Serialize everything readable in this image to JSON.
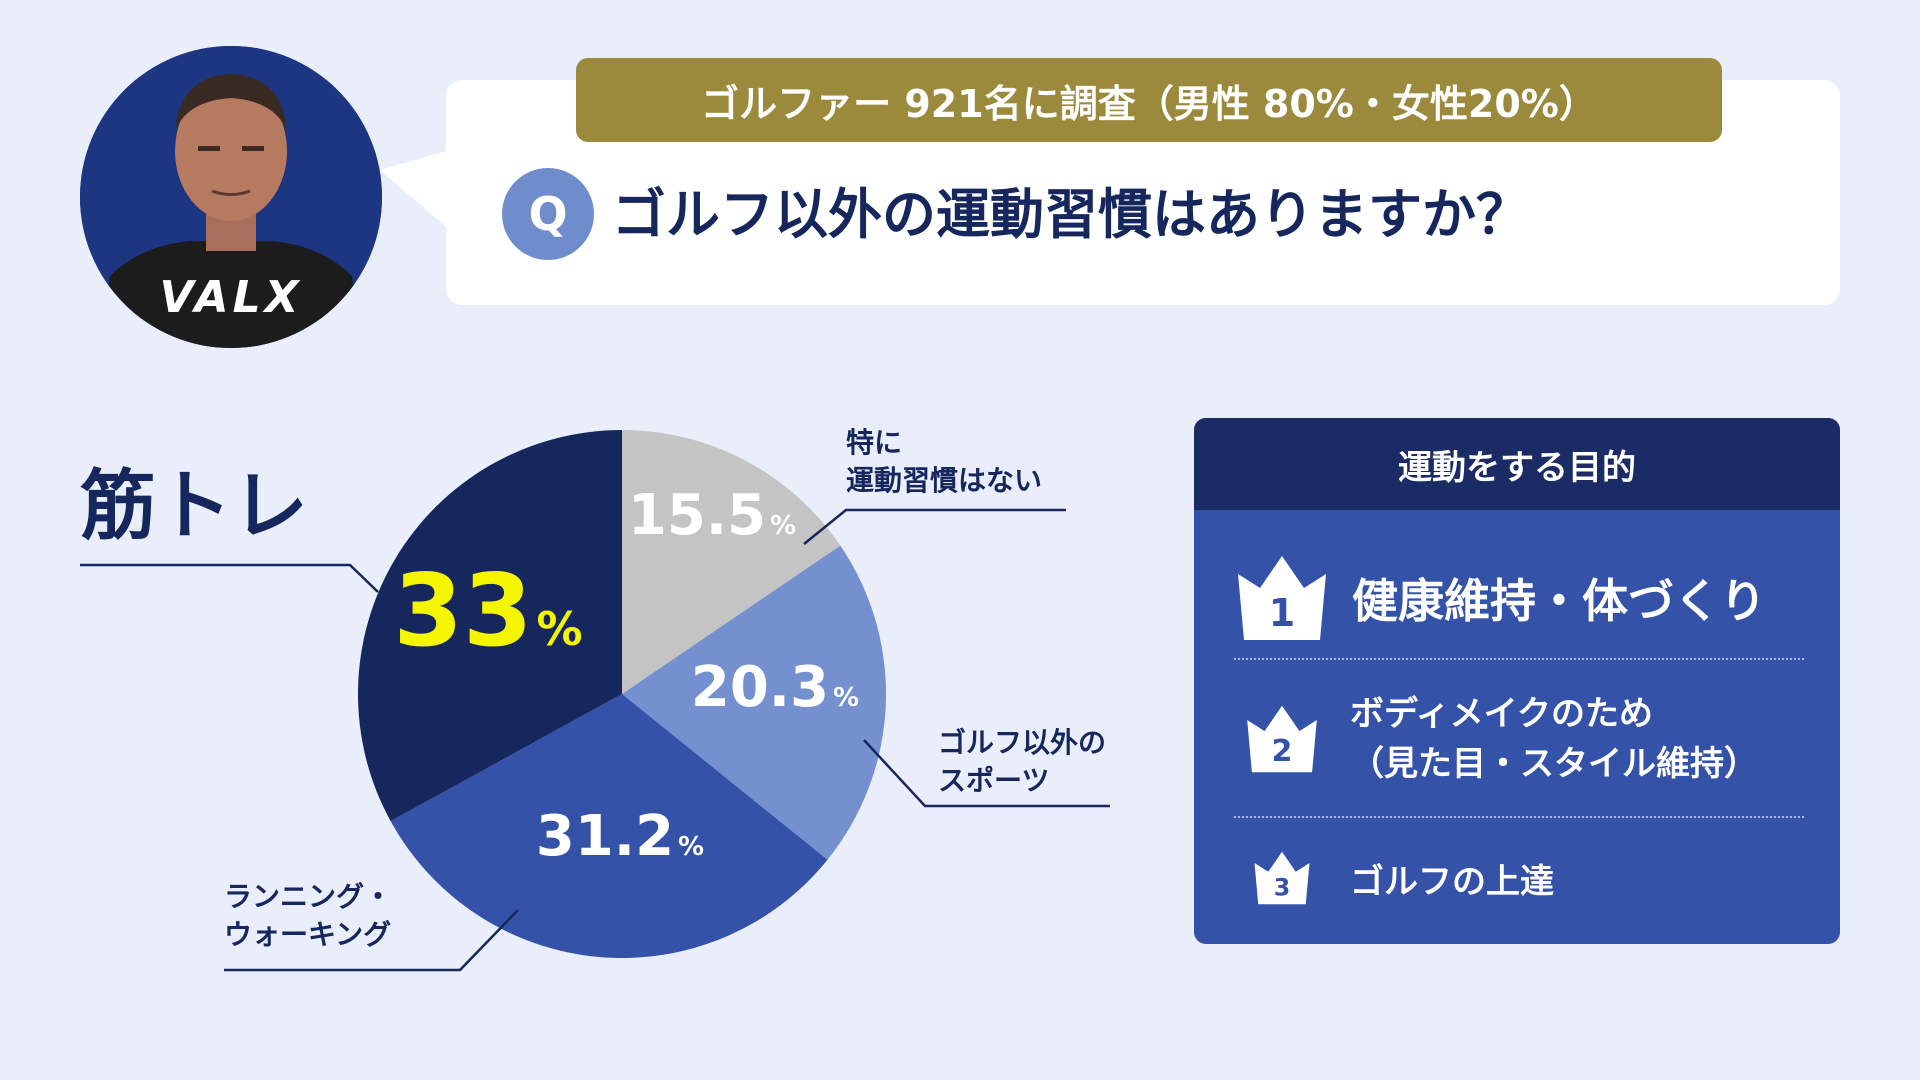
{
  "survey": {
    "banner": "ゴルファー 921名に調査（男性 80%・女性20%）",
    "q_badge": "Q",
    "question": "ゴルフ以外の運動習慣はありますか？"
  },
  "avatar": {
    "logo_text": "VALX"
  },
  "chart_data": {
    "type": "pie",
    "slices": [
      {
        "label": "特に\n運動習慣はない",
        "value": 15.5,
        "value_text": "15.5",
        "unit": "%",
        "color": "#c4c4c4"
      },
      {
        "label": "ゴルフ以外の\nスポーツ",
        "value": 20.3,
        "value_text": "20.3",
        "unit": "%",
        "color": "#7490cf"
      },
      {
        "label": "ランニング・\nウォーキング",
        "value": 31.2,
        "value_text": "31.2",
        "unit": "%",
        "color": "#3452a8"
      },
      {
        "label": "筋トレ",
        "value": 33,
        "value_text": "33",
        "unit": "%",
        "color": "#16275e",
        "highlight": true,
        "highlight_color": "#f5f500"
      }
    ]
  },
  "purpose": {
    "title": "運動をする目的",
    "items": [
      {
        "rank": "1",
        "text": "健康維持・体づくり"
      },
      {
        "rank": "2",
        "text": "ボディメイクのため\n（見た目・スタイル維持）"
      },
      {
        "rank": "3",
        "text": "ゴルフの上達"
      }
    ]
  }
}
